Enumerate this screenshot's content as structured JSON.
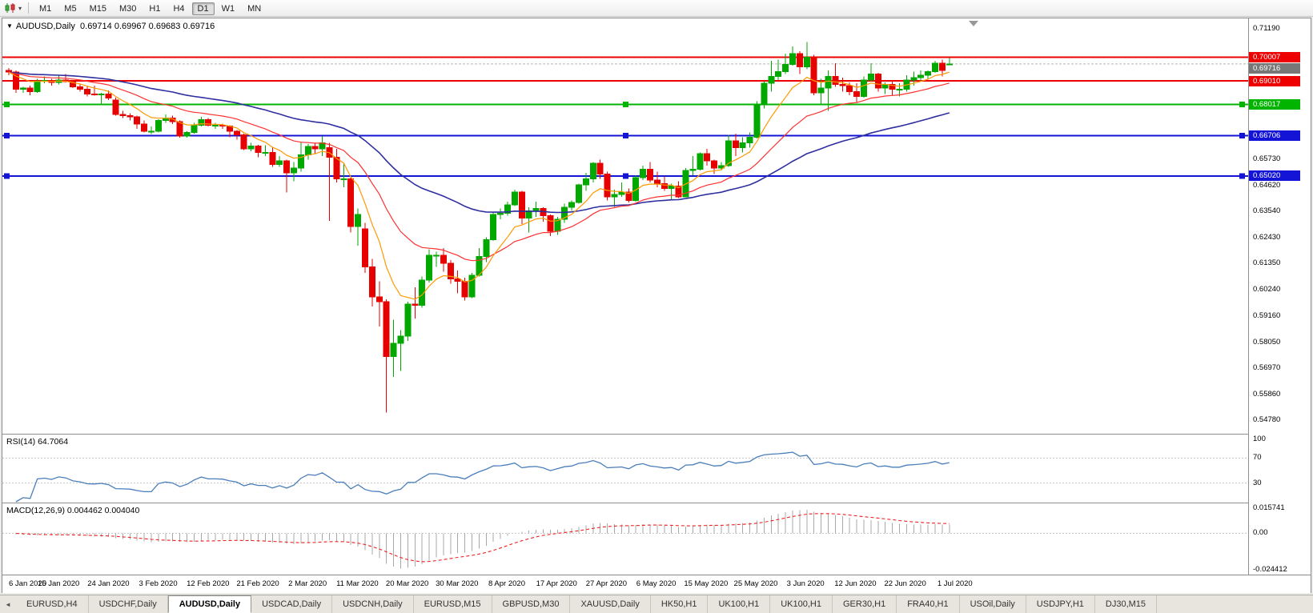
{
  "toolbar": {
    "timeframes": [
      "M1",
      "M5",
      "M15",
      "M30",
      "H1",
      "H4",
      "D1",
      "W1",
      "MN"
    ],
    "active_timeframe": "D1"
  },
  "chart": {
    "symbol_period": "AUDUSD,Daily",
    "ohlc_text": "0.69714 0.69967 0.69683 0.69716",
    "rsi_label": "RSI(14) 64.7064",
    "macd_label": "MACD(12,26,9) 0.004462 0.004040"
  },
  "colors": {
    "bull": "#00a800",
    "bear": "#e60000",
    "ma_fast": "#ff9900",
    "ma_mid": "#ff3030",
    "ma_slow": "#2e2ea0",
    "rsi_line": "#4a7ebb",
    "macd_hist": "#a8a8a8",
    "macd_signal": "#ee2222",
    "current_price": "#777777",
    "grid_dash": "#c8c8c8"
  },
  "price_axis": {
    "labels": [
      "0.71190",
      "0.65730",
      "0.64620",
      "0.63540",
      "0.62430",
      "0.61350",
      "0.60240",
      "0.59160",
      "0.58050",
      "0.56970",
      "0.55860",
      "0.54780"
    ],
    "line_labels": [
      {
        "value": "0.70007",
        "price": 0.70007,
        "color": "#ee0000"
      },
      {
        "value": "0.69716",
        "price": 0.69716,
        "color": "#777777"
      },
      {
        "value": "0.69010",
        "price": 0.6901,
        "color": "#ee0000"
      },
      {
        "value": "0.68017",
        "price": 0.68017,
        "color": "#00b400"
      },
      {
        "value": "0.66706",
        "price": 0.66706,
        "color": "#1414d6"
      },
      {
        "value": "0.65020",
        "price": 0.6502,
        "color": "#1414d6"
      }
    ]
  },
  "rsi_axis": {
    "labels": [
      {
        "value": 100,
        "text": "100"
      },
      {
        "value": 70,
        "text": "70"
      },
      {
        "value": 30,
        "text": "30"
      }
    ],
    "levels": [
      70,
      30
    ]
  },
  "macd_axis": {
    "labels": [
      {
        "value": 0.015741,
        "text": "0.015741"
      },
      {
        "value": 0,
        "text": "0.00"
      },
      {
        "value": -0.024412,
        "text": "-0.024412"
      }
    ]
  },
  "chart_data": {
    "type": "candlestick",
    "symbol": "AUDUSD",
    "timeframe": "Daily",
    "title": "AUDUSD,Daily",
    "ylim_main": [
      0.5478,
      0.7119
    ],
    "current_price": 0.69716,
    "x_labels": [
      "6 Jan 2020",
      "15 Jan 2020",
      "24 Jan 2020",
      "3 Feb 2020",
      "12 Feb 2020",
      "21 Feb 2020",
      "2 Mar 2020",
      "11 Mar 2020",
      "20 Mar 2020",
      "30 Mar 2020",
      "8 Apr 2020",
      "17 Apr 2020",
      "27 Apr 2020",
      "6 May 2020",
      "15 May 2020",
      "25 May 2020",
      "3 Jun 2020",
      "12 Jun 2020",
      "22 Jun 2020",
      "1 Jul 2020"
    ],
    "h_lines": [
      {
        "price": 0.70007,
        "color": "#ee0000",
        "width": 2,
        "handles": false
      },
      {
        "price": 0.6901,
        "color": "#ee0000",
        "width": 2,
        "handles": false
      },
      {
        "price": 0.68017,
        "color": "#00b400",
        "width": 2,
        "handles": true
      },
      {
        "price": 0.66706,
        "color": "#1414d6",
        "width": 2,
        "handles": true
      },
      {
        "price": 0.6502,
        "color": "#1414d6",
        "width": 2,
        "handles": true
      }
    ],
    "indicators": {
      "ma_fast": {
        "period": 8
      },
      "ma_mid": {
        "period": 21
      },
      "ma_slow": {
        "period": 50
      },
      "rsi": {
        "period": 14,
        "value": "64.7064",
        "ylim": [
          0,
          100
        ],
        "levels": [
          70,
          30
        ]
      },
      "macd": {
        "fast": 12,
        "slow": 26,
        "signal": 9,
        "values": "0.004462 0.004040",
        "ylim": [
          -0.024412,
          0.015741
        ]
      }
    },
    "candles": [
      [
        0.6945,
        0.6955,
        0.6925,
        0.6937
      ],
      [
        0.6937,
        0.6944,
        0.685,
        0.6865
      ],
      [
        0.6865,
        0.6875,
        0.685,
        0.687
      ],
      [
        0.687,
        0.688,
        0.684,
        0.6855
      ],
      [
        0.6855,
        0.691,
        0.685,
        0.69
      ],
      [
        0.69,
        0.692,
        0.689,
        0.6903
      ],
      [
        0.6903,
        0.691,
        0.688,
        0.6895
      ],
      [
        0.6895,
        0.6925,
        0.6885,
        0.6905
      ],
      [
        0.6905,
        0.693,
        0.6895,
        0.6898
      ],
      [
        0.6898,
        0.6905,
        0.687,
        0.6875
      ],
      [
        0.6875,
        0.6885,
        0.6855,
        0.6866
      ],
      [
        0.6866,
        0.688,
        0.6835,
        0.6845
      ],
      [
        0.6845,
        0.688,
        0.6838,
        0.6842
      ],
      [
        0.6842,
        0.685,
        0.6805,
        0.6845
      ],
      [
        0.6845,
        0.686,
        0.682,
        0.6828
      ],
      [
        0.682,
        0.683,
        0.6755,
        0.676
      ],
      [
        0.676,
        0.6775,
        0.6745,
        0.6755
      ],
      [
        0.6755,
        0.6765,
        0.6735,
        0.675
      ],
      [
        0.675,
        0.6755,
        0.67,
        0.672
      ],
      [
        0.672,
        0.6735,
        0.6685,
        0.669
      ],
      [
        0.669,
        0.671,
        0.6678,
        0.669
      ],
      [
        0.669,
        0.674,
        0.6685,
        0.6735
      ],
      [
        0.6735,
        0.676,
        0.6725,
        0.6745
      ],
      [
        0.6745,
        0.6755,
        0.672,
        0.673
      ],
      [
        0.673,
        0.6735,
        0.6662,
        0.667
      ],
      [
        0.667,
        0.669,
        0.6662,
        0.6685
      ],
      [
        0.6685,
        0.6725,
        0.668,
        0.6715
      ],
      [
        0.6715,
        0.675,
        0.671,
        0.6738
      ],
      [
        0.6738,
        0.6745,
        0.671,
        0.6715
      ],
      [
        0.6715,
        0.6725,
        0.67,
        0.6715
      ],
      [
        0.6715,
        0.6722,
        0.67,
        0.6712
      ],
      [
        0.6712,
        0.6715,
        0.6665,
        0.669
      ],
      [
        0.669,
        0.6695,
        0.6655,
        0.6675
      ],
      [
        0.6675,
        0.668,
        0.661,
        0.6615
      ],
      [
        0.6615,
        0.664,
        0.6605,
        0.6628
      ],
      [
        0.6628,
        0.6632,
        0.658,
        0.66
      ],
      [
        0.66,
        0.663,
        0.6585,
        0.66
      ],
      [
        0.66,
        0.662,
        0.654,
        0.655
      ],
      [
        0.655,
        0.6585,
        0.654,
        0.6565
      ],
      [
        0.6565,
        0.657,
        0.6433,
        0.6515
      ],
      [
        0.6515,
        0.656,
        0.648,
        0.6535
      ],
      [
        0.6535,
        0.6645,
        0.652,
        0.659
      ],
      [
        0.659,
        0.6635,
        0.657,
        0.6625
      ],
      [
        0.6625,
        0.664,
        0.6595,
        0.6615
      ],
      [
        0.6615,
        0.6668,
        0.6585,
        0.664
      ],
      [
        0.662,
        0.664,
        0.6313,
        0.658
      ],
      [
        0.658,
        0.6615,
        0.6475,
        0.649
      ],
      [
        0.649,
        0.6555,
        0.6455,
        0.649
      ],
      [
        0.649,
        0.6495,
        0.6265,
        0.629
      ],
      [
        0.629,
        0.6365,
        0.621,
        0.634
      ],
      [
        0.628,
        0.6305,
        0.6095,
        0.612
      ],
      [
        0.612,
        0.6155,
        0.5955,
        0.5995
      ],
      [
        0.5995,
        0.606,
        0.587,
        0.5975
      ],
      [
        0.5975,
        0.5985,
        0.551,
        0.5745
      ],
      [
        0.5745,
        0.59,
        0.566,
        0.58
      ],
      [
        0.58,
        0.5855,
        0.5685,
        0.583
      ],
      [
        0.583,
        0.5975,
        0.581,
        0.5965
      ],
      [
        0.5965,
        0.6035,
        0.5905,
        0.596
      ],
      [
        0.596,
        0.608,
        0.595,
        0.6065
      ],
      [
        0.6065,
        0.6195,
        0.6055,
        0.617
      ],
      [
        0.617,
        0.6185,
        0.612,
        0.617
      ],
      [
        0.617,
        0.62,
        0.61,
        0.6135
      ],
      [
        0.6135,
        0.615,
        0.605,
        0.607
      ],
      [
        0.607,
        0.6105,
        0.601,
        0.606
      ],
      [
        0.606,
        0.6075,
        0.598,
        0.5995
      ],
      [
        0.5995,
        0.6095,
        0.599,
        0.6085
      ],
      [
        0.6085,
        0.62,
        0.608,
        0.6165
      ],
      [
        0.6165,
        0.6245,
        0.614,
        0.6235
      ],
      [
        0.6235,
        0.635,
        0.623,
        0.634
      ],
      [
        0.634,
        0.6365,
        0.632,
        0.6345
      ],
      [
        0.6345,
        0.6395,
        0.6335,
        0.638
      ],
      [
        0.638,
        0.6445,
        0.6375,
        0.6435
      ],
      [
        0.6435,
        0.644,
        0.63,
        0.6325
      ],
      [
        0.6325,
        0.637,
        0.6265,
        0.6355
      ],
      [
        0.6355,
        0.6395,
        0.633,
        0.6365
      ],
      [
        0.6365,
        0.637,
        0.631,
        0.6335
      ],
      [
        0.6335,
        0.634,
        0.625,
        0.627
      ],
      [
        0.627,
        0.633,
        0.6255,
        0.632
      ],
      [
        0.632,
        0.6385,
        0.6305,
        0.637
      ],
      [
        0.637,
        0.64,
        0.6355,
        0.639
      ],
      [
        0.639,
        0.647,
        0.6385,
        0.6465
      ],
      [
        0.6465,
        0.6515,
        0.644,
        0.649
      ],
      [
        0.649,
        0.656,
        0.6475,
        0.6555
      ],
      [
        0.6555,
        0.657,
        0.649,
        0.651
      ],
      [
        0.651,
        0.652,
        0.64,
        0.6415
      ],
      [
        0.6415,
        0.6445,
        0.6372,
        0.6425
      ],
      [
        0.6425,
        0.6475,
        0.6415,
        0.6435
      ],
      [
        0.6435,
        0.645,
        0.639,
        0.64
      ],
      [
        0.64,
        0.6505,
        0.6395,
        0.6495
      ],
      [
        0.6495,
        0.6545,
        0.6485,
        0.653
      ],
      [
        0.653,
        0.656,
        0.6475,
        0.6485
      ],
      [
        0.6485,
        0.652,
        0.6455,
        0.647
      ],
      [
        0.647,
        0.65,
        0.644,
        0.645
      ],
      [
        0.645,
        0.647,
        0.6403,
        0.646
      ],
      [
        0.646,
        0.648,
        0.641,
        0.6415
      ],
      [
        0.6415,
        0.6535,
        0.6415,
        0.6525
      ],
      [
        0.6525,
        0.6585,
        0.6505,
        0.653
      ],
      [
        0.653,
        0.66,
        0.6525,
        0.6595
      ],
      [
        0.6595,
        0.6615,
        0.6545,
        0.6565
      ],
      [
        0.6565,
        0.657,
        0.651,
        0.6535
      ],
      [
        0.6535,
        0.656,
        0.6525,
        0.6545
      ],
      [
        0.6545,
        0.6675,
        0.654,
        0.665
      ],
      [
        0.665,
        0.668,
        0.6585,
        0.662
      ],
      [
        0.662,
        0.6665,
        0.66,
        0.664
      ],
      [
        0.664,
        0.6685,
        0.662,
        0.6665
      ],
      [
        0.6665,
        0.6815,
        0.666,
        0.68
      ],
      [
        0.68,
        0.69,
        0.6785,
        0.689
      ],
      [
        0.689,
        0.6985,
        0.6855,
        0.692
      ],
      [
        0.692,
        0.699,
        0.6905,
        0.694
      ],
      [
        0.694,
        0.7015,
        0.693,
        0.697
      ],
      [
        0.697,
        0.7045,
        0.6965,
        0.7015
      ],
      [
        0.7015,
        0.7025,
        0.693,
        0.696
      ],
      [
        0.696,
        0.7064,
        0.695,
        0.7
      ],
      [
        0.7,
        0.701,
        0.684,
        0.685
      ],
      [
        0.685,
        0.691,
        0.68,
        0.687
      ],
      [
        0.687,
        0.6945,
        0.6775,
        0.692
      ],
      [
        0.692,
        0.6975,
        0.6875,
        0.6885
      ],
      [
        0.6885,
        0.6915,
        0.6855,
        0.688
      ],
      [
        0.688,
        0.6895,
        0.684,
        0.6855
      ],
      [
        0.6855,
        0.689,
        0.681,
        0.6835
      ],
      [
        0.6835,
        0.692,
        0.683,
        0.6905
      ],
      [
        0.6905,
        0.6975,
        0.69,
        0.693
      ],
      [
        0.693,
        0.6935,
        0.6855,
        0.687
      ],
      [
        0.687,
        0.6895,
        0.6845,
        0.6885
      ],
      [
        0.6885,
        0.69,
        0.684,
        0.6865
      ],
      [
        0.6865,
        0.689,
        0.6835,
        0.6865
      ],
      [
        0.6865,
        0.6925,
        0.6855,
        0.6905
      ],
      [
        0.6905,
        0.694,
        0.688,
        0.6915
      ],
      [
        0.6915,
        0.6945,
        0.69,
        0.6925
      ],
      [
        0.6925,
        0.6945,
        0.691,
        0.694
      ],
      [
        0.694,
        0.6985,
        0.6935,
        0.6975
      ],
      [
        0.6975,
        0.699,
        0.692,
        0.6945
      ],
      [
        0.69714,
        0.69967,
        0.69683,
        0.69716
      ]
    ]
  },
  "tabs": {
    "items": [
      "EURUSD,H4",
      "USDCHF,Daily",
      "AUDUSD,Daily",
      "USDCAD,Daily",
      "USDCNH,Daily",
      "EURUSD,M15",
      "GBPUSD,M30",
      "XAUUSD,Daily",
      "HK50,H1",
      "UK100,H1",
      "UK100,H1",
      "GER30,H1",
      "FRA40,H1",
      "USOil,Daily",
      "USDJPY,H1",
      "DJ30,M15"
    ],
    "active_index": 2
  }
}
